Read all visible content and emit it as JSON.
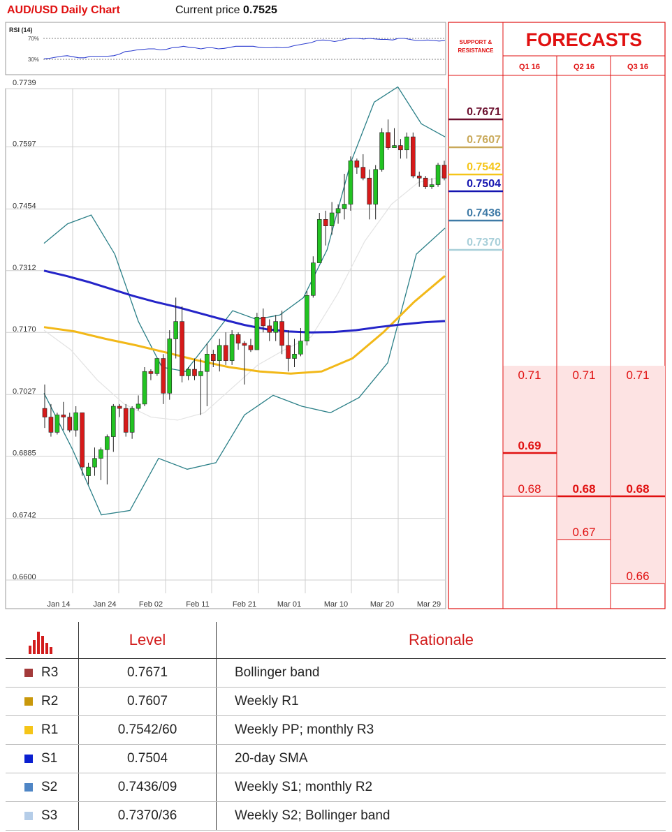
{
  "header": {
    "title": "AUD/USD Daily Chart",
    "price_label": "Current price",
    "price_value": "0.7525"
  },
  "rsi": {
    "label": "RSI (14)",
    "level_high": "70%",
    "level_low": "30%",
    "values": [
      31,
      32,
      34,
      36,
      37,
      35,
      33,
      33,
      36,
      36,
      36,
      36,
      37,
      40,
      45,
      46,
      48,
      49,
      50,
      50,
      48,
      49,
      52,
      53,
      55,
      53,
      52,
      50,
      52,
      52,
      50,
      51,
      53,
      55,
      55,
      55,
      55,
      53,
      52,
      52,
      53,
      52,
      53,
      56,
      58,
      60,
      62,
      66,
      67,
      66,
      64,
      66,
      69,
      70,
      70,
      69,
      70,
      69,
      68,
      68,
      67,
      70,
      70,
      68,
      66,
      66,
      67,
      66,
      65,
      66
    ]
  },
  "chart_data": {
    "type": "candlestick",
    "title": "AUD/USD Daily Chart",
    "ylim": [
      0.66,
      0.7739
    ],
    "y_ticks": [
      "0.7739",
      "0.7597",
      "0.7454",
      "0.7312",
      "0.7170",
      "0.7027",
      "0.6885",
      "0.6742",
      "0.6600"
    ],
    "x_ticks": [
      "Jan 14",
      "Jan 24",
      "Feb 02",
      "Feb 11",
      "Feb 21",
      "Mar 01",
      "Mar 10",
      "Mar 20",
      "Mar 29"
    ],
    "candles": [
      {
        "o": 0.6995,
        "h": 0.705,
        "l": 0.695,
        "c": 0.6975
      },
      {
        "o": 0.6975,
        "h": 0.7005,
        "l": 0.693,
        "c": 0.694
      },
      {
        "o": 0.694,
        "h": 0.6985,
        "l": 0.6935,
        "c": 0.698
      },
      {
        "o": 0.698,
        "h": 0.701,
        "l": 0.6945,
        "c": 0.6975
      },
      {
        "o": 0.6975,
        "h": 0.6985,
        "l": 0.694,
        "c": 0.6945
      },
      {
        "o": 0.6945,
        "h": 0.7,
        "l": 0.693,
        "c": 0.6985
      },
      {
        "o": 0.6985,
        "h": 0.6985,
        "l": 0.684,
        "c": 0.686
      },
      {
        "o": 0.684,
        "h": 0.687,
        "l": 0.682,
        "c": 0.686
      },
      {
        "o": 0.686,
        "h": 0.6905,
        "l": 0.684,
        "c": 0.688
      },
      {
        "o": 0.688,
        "h": 0.6905,
        "l": 0.683,
        "c": 0.69
      },
      {
        "o": 0.69,
        "h": 0.6935,
        "l": 0.682,
        "c": 0.693
      },
      {
        "o": 0.693,
        "h": 0.7005,
        "l": 0.6895,
        "c": 0.7
      },
      {
        "o": 0.7,
        "h": 0.7005,
        "l": 0.6975,
        "c": 0.6995
      },
      {
        "o": 0.6995,
        "h": 0.7005,
        "l": 0.693,
        "c": 0.694
      },
      {
        "o": 0.694,
        "h": 0.7,
        "l": 0.6925,
        "c": 0.6995
      },
      {
        "o": 0.6995,
        "h": 0.7025,
        "l": 0.699,
        "c": 0.7005
      },
      {
        "o": 0.7005,
        "h": 0.709,
        "l": 0.7,
        "c": 0.708
      },
      {
        "o": 0.708,
        "h": 0.7085,
        "l": 0.706,
        "c": 0.7075
      },
      {
        "o": 0.7075,
        "h": 0.711,
        "l": 0.707,
        "c": 0.711
      },
      {
        "o": 0.711,
        "h": 0.712,
        "l": 0.7005,
        "c": 0.703
      },
      {
        "o": 0.703,
        "h": 0.7175,
        "l": 0.7015,
        "c": 0.7155
      },
      {
        "o": 0.7155,
        "h": 0.725,
        "l": 0.711,
        "c": 0.7195
      },
      {
        "o": 0.7195,
        "h": 0.723,
        "l": 0.7055,
        "c": 0.707
      },
      {
        "o": 0.707,
        "h": 0.709,
        "l": 0.706,
        "c": 0.7085
      },
      {
        "o": 0.7085,
        "h": 0.711,
        "l": 0.706,
        "c": 0.707
      },
      {
        "o": 0.707,
        "h": 0.711,
        "l": 0.698,
        "c": 0.708
      },
      {
        "o": 0.708,
        "h": 0.7145,
        "l": 0.7,
        "c": 0.712
      },
      {
        "o": 0.712,
        "h": 0.713,
        "l": 0.709,
        "c": 0.7105
      },
      {
        "o": 0.7105,
        "h": 0.7155,
        "l": 0.708,
        "c": 0.714
      },
      {
        "o": 0.714,
        "h": 0.717,
        "l": 0.7095,
        "c": 0.7105
      },
      {
        "o": 0.7105,
        "h": 0.7175,
        "l": 0.7095,
        "c": 0.7165
      },
      {
        "o": 0.7165,
        "h": 0.717,
        "l": 0.713,
        "c": 0.7145
      },
      {
        "o": 0.7145,
        "h": 0.715,
        "l": 0.705,
        "c": 0.714
      },
      {
        "o": 0.714,
        "h": 0.7155,
        "l": 0.7125,
        "c": 0.713
      },
      {
        "o": 0.713,
        "h": 0.7215,
        "l": 0.713,
        "c": 0.7205
      },
      {
        "o": 0.7205,
        "h": 0.7225,
        "l": 0.717,
        "c": 0.7185
      },
      {
        "o": 0.7185,
        "h": 0.72,
        "l": 0.715,
        "c": 0.717
      },
      {
        "o": 0.717,
        "h": 0.721,
        "l": 0.715,
        "c": 0.7195
      },
      {
        "o": 0.7195,
        "h": 0.722,
        "l": 0.712,
        "c": 0.714
      },
      {
        "o": 0.714,
        "h": 0.7175,
        "l": 0.708,
        "c": 0.711
      },
      {
        "o": 0.711,
        "h": 0.7155,
        "l": 0.709,
        "c": 0.712
      },
      {
        "o": 0.712,
        "h": 0.718,
        "l": 0.7115,
        "c": 0.715
      },
      {
        "o": 0.715,
        "h": 0.7265,
        "l": 0.714,
        "c": 0.7255
      },
      {
        "o": 0.7255,
        "h": 0.7345,
        "l": 0.725,
        "c": 0.733
      },
      {
        "o": 0.733,
        "h": 0.7445,
        "l": 0.733,
        "c": 0.743
      },
      {
        "o": 0.743,
        "h": 0.745,
        "l": 0.737,
        "c": 0.7415
      },
      {
        "o": 0.7415,
        "h": 0.747,
        "l": 0.7395,
        "c": 0.7445
      },
      {
        "o": 0.7445,
        "h": 0.7465,
        "l": 0.742,
        "c": 0.7455
      },
      {
        "o": 0.7455,
        "h": 0.7535,
        "l": 0.743,
        "c": 0.7465
      },
      {
        "o": 0.7465,
        "h": 0.7575,
        "l": 0.745,
        "c": 0.7565
      },
      {
        "o": 0.7565,
        "h": 0.757,
        "l": 0.7535,
        "c": 0.755
      },
      {
        "o": 0.755,
        "h": 0.758,
        "l": 0.752,
        "c": 0.7525
      },
      {
        "o": 0.7525,
        "h": 0.7545,
        "l": 0.743,
        "c": 0.7465
      },
      {
        "o": 0.7465,
        "h": 0.7555,
        "l": 0.743,
        "c": 0.7545
      },
      {
        "o": 0.7545,
        "h": 0.764,
        "l": 0.754,
        "c": 0.763
      },
      {
        "o": 0.763,
        "h": 0.766,
        "l": 0.759,
        "c": 0.7595
      },
      {
        "o": 0.7595,
        "h": 0.764,
        "l": 0.7595,
        "c": 0.76
      },
      {
        "o": 0.76,
        "h": 0.7615,
        "l": 0.757,
        "c": 0.759
      },
      {
        "o": 0.759,
        "h": 0.763,
        "l": 0.757,
        "c": 0.762
      },
      {
        "o": 0.762,
        "h": 0.763,
        "l": 0.7525,
        "c": 0.753
      },
      {
        "o": 0.753,
        "h": 0.754,
        "l": 0.7505,
        "c": 0.7525
      },
      {
        "o": 0.7525,
        "h": 0.753,
        "l": 0.75,
        "c": 0.7505
      },
      {
        "o": 0.7505,
        "h": 0.7525,
        "l": 0.75,
        "c": 0.751
      },
      {
        "o": 0.751,
        "h": 0.756,
        "l": 0.7505,
        "c": 0.7555
      },
      {
        "o": 0.7555,
        "h": 0.7565,
        "l": 0.752,
        "c": 0.7525
      }
    ],
    "sma200": [
      0.7312,
      0.73,
      0.7286,
      0.727,
      0.7254,
      0.724,
      0.7228,
      0.7214,
      0.72,
      0.7187,
      0.7177,
      0.7172,
      0.717,
      0.7171,
      0.7175,
      0.7182,
      0.7188,
      0.7193,
      0.7196
    ],
    "sma100": [
      0.7182,
      0.7172,
      0.7155,
      0.714,
      0.7123,
      0.7105,
      0.709,
      0.708,
      0.7075,
      0.708,
      0.711,
      0.717,
      0.724,
      0.73
    ],
    "sma20": [
      0.7175,
      0.713,
      0.706,
      0.7005,
      0.6975,
      0.6968,
      0.6985,
      0.704,
      0.7095,
      0.713,
      0.716,
      0.726,
      0.738,
      0.7465,
      0.7515,
      0.753
    ],
    "bb_upper": [
      0.7375,
      0.742,
      0.744,
      0.735,
      0.7195,
      0.709,
      0.708,
      0.715,
      0.722,
      0.72,
      0.721,
      0.725,
      0.736,
      0.756,
      0.77,
      0.7735,
      0.765,
      0.762
    ],
    "bb_lower": [
      0.703,
      0.69,
      0.675,
      0.676,
      0.688,
      0.6855,
      0.687,
      0.698,
      0.7025,
      0.7,
      0.6985,
      0.702,
      0.71,
      0.735,
      0.741
    ],
    "sr_levels": [
      {
        "value": "0.7671",
        "color": "#6b0f2e"
      },
      {
        "value": "0.7607",
        "color": "#c9a95a"
      },
      {
        "value": "0.7542",
        "color": "#f5c518"
      },
      {
        "value": "0.7504",
        "color": "#1515b0"
      },
      {
        "value": "0.7436",
        "color": "#3e7aa6"
      },
      {
        "value": "0.7370",
        "color": "#a8cfd9"
      }
    ]
  },
  "forecast": {
    "sr_label_line1": "SUPPORT &",
    "sr_label_line2": "RESISTANCE",
    "title": "FORECASTS",
    "quarters": [
      "Q1 16",
      "Q2 16",
      "Q3 16"
    ],
    "q1": {
      "values": [
        "0.71",
        "0.69",
        "0.68"
      ],
      "main": "0.69"
    },
    "q2": {
      "values": [
        "0.71",
        "0.68",
        "0.67"
      ],
      "main": "0.68"
    },
    "q3": {
      "values": [
        "0.71",
        "0.68",
        "0.66"
      ],
      "main": "0.68"
    }
  },
  "table": {
    "header_level": "Level",
    "header_rationale": "Rationale",
    "rows": [
      {
        "name": "R3",
        "level": "0.7671",
        "rationale": "Bollinger band",
        "color": "#a33a3a"
      },
      {
        "name": "R2",
        "level": "0.7607",
        "rationale": "Weekly R1",
        "color": "#c9980b"
      },
      {
        "name": "R1",
        "level": "0.7542/60",
        "rationale": "Weekly PP; monthly R3",
        "color": "#f5c518"
      },
      {
        "name": "S1",
        "level": "0.7504",
        "rationale": "20-day SMA",
        "color": "#0a1fd0"
      },
      {
        "name": "S2",
        "level": "0.7436/09",
        "rationale": "Weekly S1; monthly R2",
        "color": "#4f86c6"
      },
      {
        "name": "S3",
        "level": "0.7370/36",
        "rationale": "Weekly S2; Bollinger band",
        "color": "#b5cde8"
      }
    ]
  },
  "colors": {
    "up": "#22c322",
    "down": "#d61a1a",
    "accent": "#e01010",
    "sma200": "#2424c8",
    "sma100": "#f2b818",
    "bb": "#2a7f87"
  }
}
